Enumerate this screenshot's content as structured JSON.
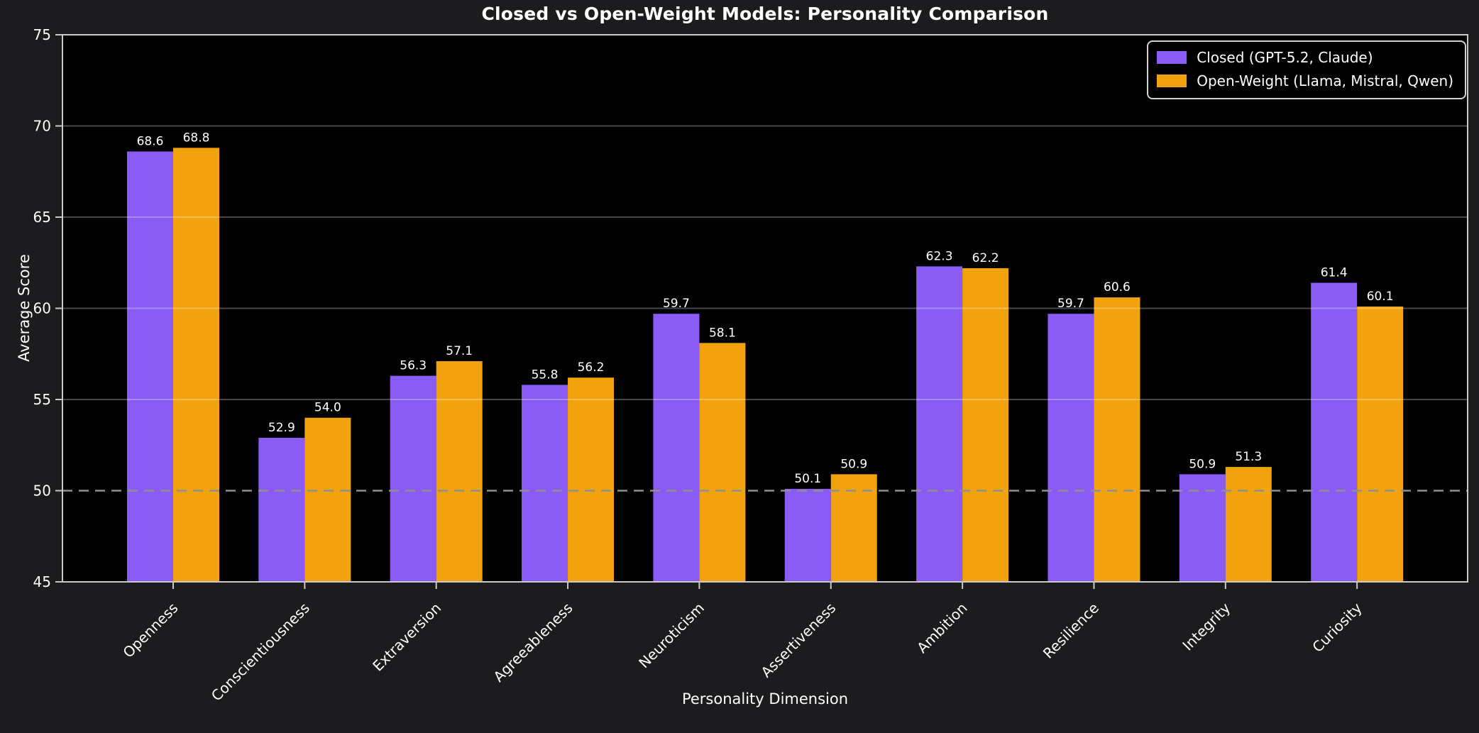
{
  "chart_data": {
    "type": "bar",
    "title": "Closed vs Open-Weight Models: Personality Comparison",
    "xlabel": "Personality Dimension",
    "ylabel": "Average Score",
    "ylim": [
      45,
      75
    ],
    "yticks": [
      45,
      50,
      55,
      60,
      65,
      70,
      75
    ],
    "grid": true,
    "legend_position": "upper right",
    "categories": [
      "Openness",
      "Conscientiousness",
      "Extraversion",
      "Agreeableness",
      "Neuroticism",
      "Assertiveness",
      "Ambition",
      "Resilience",
      "Integrity",
      "Curiosity"
    ],
    "series": [
      {
        "name": "Closed (GPT-5.2, Claude)",
        "color": "#8a5cf5",
        "values": [
          68.6,
          52.9,
          56.3,
          55.8,
          59.7,
          50.1,
          62.3,
          59.7,
          50.9,
          61.4
        ]
      },
      {
        "name": "Open-Weight (Llama, Mistral, Qwen)",
        "color": "#f2a20c",
        "values": [
          68.8,
          54.0,
          57.1,
          56.2,
          58.1,
          50.9,
          62.2,
          60.6,
          51.3,
          60.1
        ]
      }
    ],
    "reference_line": {
      "y": 50,
      "style": "dashed",
      "color": "#8f8f8f"
    },
    "value_label_decimals": 1,
    "colors": {
      "figure_bg": "#1c1c1e",
      "plot_bg": "#000000",
      "text": "#ffffff",
      "spine": "#c9c9c9",
      "grid": "#ffffff",
      "tick": "#c9c9c9"
    }
  }
}
